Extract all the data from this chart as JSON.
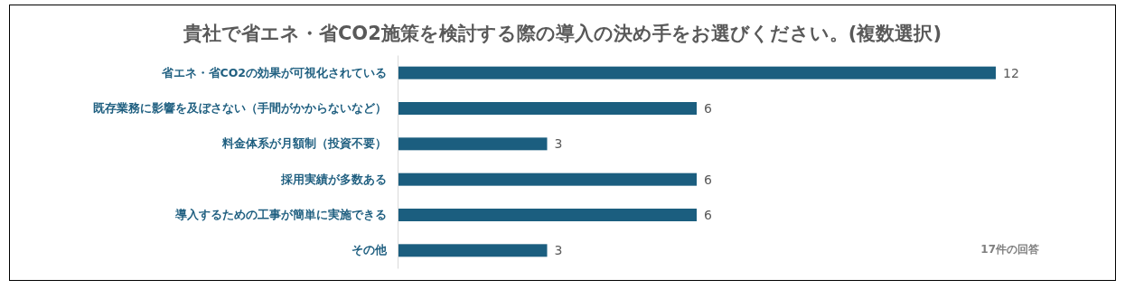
{
  "chart_data": {
    "type": "bar",
    "orientation": "horizontal",
    "title": "貴社で省エネ・省CO2施策を検討する際の導入の決め手をお選びください。(複数選択)",
    "categories": [
      "省エネ・省CO2の効果が可視化されている",
      "既存業務に影響を及ぼさない（手間がかからないなど）",
      "料金体系が月額制（投資不要）",
      "採用実績が多数ある",
      "導入するための工事が簡単に実施できる",
      "その他"
    ],
    "values": [
      12,
      6,
      3,
      6,
      6,
      3
    ],
    "color": "#1b5e7f",
    "data_labels": true,
    "annotations": [
      "17件の回答"
    ]
  }
}
